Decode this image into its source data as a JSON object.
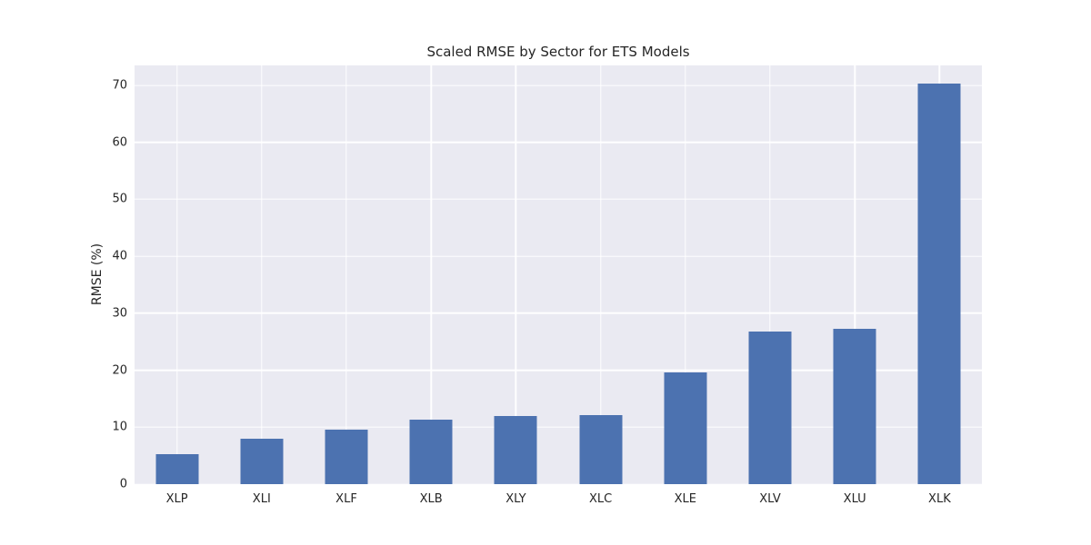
{
  "chart_data": {
    "type": "bar",
    "title": "Scaled RMSE by Sector for ETS Models",
    "xlabel": "",
    "ylabel": "RMSE (%)",
    "categories": [
      "XLP",
      "XLI",
      "XLF",
      "XLB",
      "XLY",
      "XLC",
      "XLE",
      "XLV",
      "XLU",
      "XLK"
    ],
    "values": [
      5.2,
      7.9,
      9.6,
      11.3,
      11.9,
      12.1,
      19.6,
      26.8,
      27.3,
      70.3
    ],
    "yticks": [
      0,
      10,
      20,
      30,
      40,
      50,
      60,
      70
    ],
    "ylim": [
      0,
      73.5
    ],
    "grid": "on",
    "legend_position": "none",
    "bar_color": "#4C72B0",
    "plot_background_color": "#EAEAF2",
    "gridline_color": "#FFFFFF",
    "text_color": "#262626",
    "figure_background_color": "#FFFFFF"
  }
}
